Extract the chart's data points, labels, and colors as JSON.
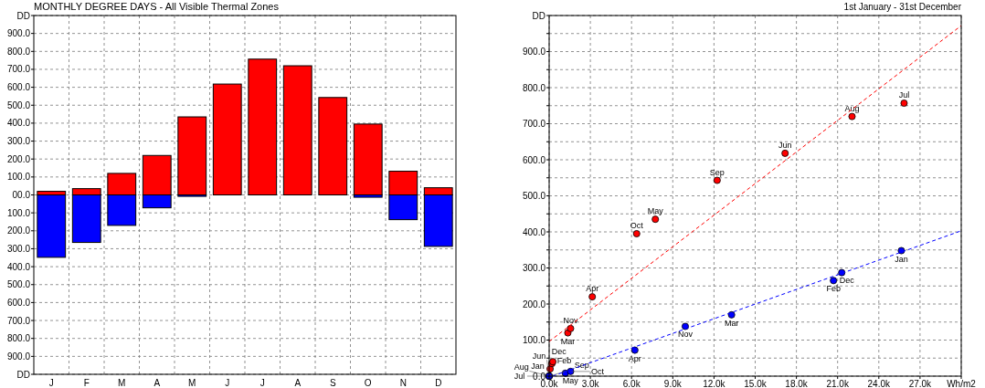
{
  "chart_data": [
    {
      "type": "bar",
      "title": "MONTHLY DEGREE DAYS - All Visible Thermal Zones",
      "categories": [
        "J",
        "F",
        "M",
        "A",
        "M",
        "J",
        "J",
        "A",
        "S",
        "O",
        "N",
        "D"
      ],
      "stacked": true,
      "grid": true,
      "series": [
        {
          "color": "#ff0000",
          "values": [
            20,
            35,
            120,
            220,
            435,
            618,
            757,
            720,
            543,
            395,
            132,
            40
          ]
        },
        {
          "color": "#0000ff",
          "values": [
            -348,
            -265,
            -170,
            -72,
            -8,
            0,
            0,
            0,
            0,
            -13,
            -138,
            -287
          ]
        }
      ],
      "ylim": [
        -1000,
        1000
      ],
      "yticks": [
        {
          "value": -1000,
          "label": "DD"
        },
        {
          "value": -900,
          "label": "900.0"
        },
        {
          "value": -800,
          "label": "800.0"
        },
        {
          "value": -700,
          "label": "700.0"
        },
        {
          "value": -600,
          "label": "600.0"
        },
        {
          "value": -500,
          "label": "500.0"
        },
        {
          "value": -400,
          "label": "400.0"
        },
        {
          "value": -300,
          "label": "300.0"
        },
        {
          "value": -200,
          "label": "200.0"
        },
        {
          "value": -100,
          "label": "100.0"
        },
        {
          "value": 0,
          "label": "00.0"
        },
        {
          "value": 100,
          "label": "100.0"
        },
        {
          "value": 200,
          "label": "200.0"
        },
        {
          "value": 300,
          "label": "300.0"
        },
        {
          "value": 400,
          "label": "400.0"
        },
        {
          "value": 500,
          "label": "500.0"
        },
        {
          "value": 600,
          "label": "600.0"
        },
        {
          "value": 700,
          "label": "700.0"
        },
        {
          "value": 800,
          "label": "800.0"
        },
        {
          "value": 900,
          "label": "900.0"
        },
        {
          "value": 1000,
          "label": "DD"
        }
      ]
    },
    {
      "type": "scatter",
      "subtitle": "1st January - 31st December",
      "grid": true,
      "marker": "circle",
      "series": [
        {
          "color": "#ff0000",
          "x": [
            70,
            200,
            1360,
            3140,
            7730,
            17175,
            25840,
            22050,
            12230,
            6370,
            1560,
            270
          ],
          "values": [
            20,
            35,
            120,
            220,
            435,
            618,
            757,
            720,
            543,
            395,
            132,
            40
          ],
          "value_labels": [
            "Jan",
            "Feb",
            "Mar",
            "Apr",
            "May",
            "Jun",
            "Jul",
            "Aug",
            "Sep",
            "Oct",
            "Nov",
            "Dec"
          ]
        },
        {
          "color": "#0000ff",
          "x": [
            25640,
            20700,
            13280,
            6240,
            1180,
            0,
            0,
            0,
            0,
            1560,
            9910,
            21300
          ],
          "values": [
            348,
            265,
            170,
            72,
            8,
            0,
            0,
            0,
            0,
            13,
            138,
            287
          ],
          "value_labels": [
            "Jan",
            "Feb",
            "Mar",
            "Apr",
            "May",
            "Jun",
            "Jul",
            "Aug",
            "Sep",
            "Oct",
            "Nov",
            "Dec"
          ]
        },
        {
          "type": "line",
          "color": "#ff0000",
          "line_style": "dashed",
          "marker": "none",
          "x": [
            0,
            30000
          ],
          "values": [
            96,
            972
          ]
        },
        {
          "type": "line",
          "color": "#0000ff",
          "line_style": "dashed",
          "marker": "none",
          "x": [
            250,
            30000
          ],
          "values": [
            0,
            403
          ]
        }
      ],
      "xlim": [
        0,
        30000
      ],
      "xticks": [
        {
          "value": 0,
          "label": "0.0k"
        },
        {
          "value": 3000,
          "label": "3.0k"
        },
        {
          "value": 6000,
          "label": "6.0k"
        },
        {
          "value": 9000,
          "label": "9.0k"
        },
        {
          "value": 12000,
          "label": "12.0k"
        },
        {
          "value": 15000,
          "label": "15.0k"
        },
        {
          "value": 18000,
          "label": "18.0k"
        },
        {
          "value": 21000,
          "label": "21.0k"
        },
        {
          "value": 24000,
          "label": "24.0k"
        },
        {
          "value": 27000,
          "label": "27.0k"
        },
        {
          "value": 30000,
          "label": "Wh/m2"
        }
      ],
      "ylim": [
        0,
        1000
      ],
      "yticks": [
        {
          "value": 0,
          "label": "0.0"
        },
        {
          "value": 50,
          "label": null
        },
        {
          "value": 100,
          "label": "100.0"
        },
        {
          "value": 150,
          "label": null
        },
        {
          "value": 200,
          "label": "200.0"
        },
        {
          "value": 250,
          "label": null
        },
        {
          "value": 300,
          "label": "300.0"
        },
        {
          "value": 350,
          "label": null
        },
        {
          "value": 400,
          "label": "400.0"
        },
        {
          "value": 450,
          "label": null
        },
        {
          "value": 500,
          "label": "500.0"
        },
        {
          "value": 550,
          "label": null
        },
        {
          "value": 600,
          "label": "600.0"
        },
        {
          "value": 650,
          "label": null
        },
        {
          "value": 700,
          "label": "700.0"
        },
        {
          "value": 750,
          "label": null
        },
        {
          "value": 800,
          "label": "800.0"
        },
        {
          "value": 850,
          "label": null
        },
        {
          "value": 900,
          "label": "900.0"
        },
        {
          "value": 950,
          "label": null
        },
        {
          "value": 1000,
          "label": "DD"
        }
      ]
    }
  ]
}
